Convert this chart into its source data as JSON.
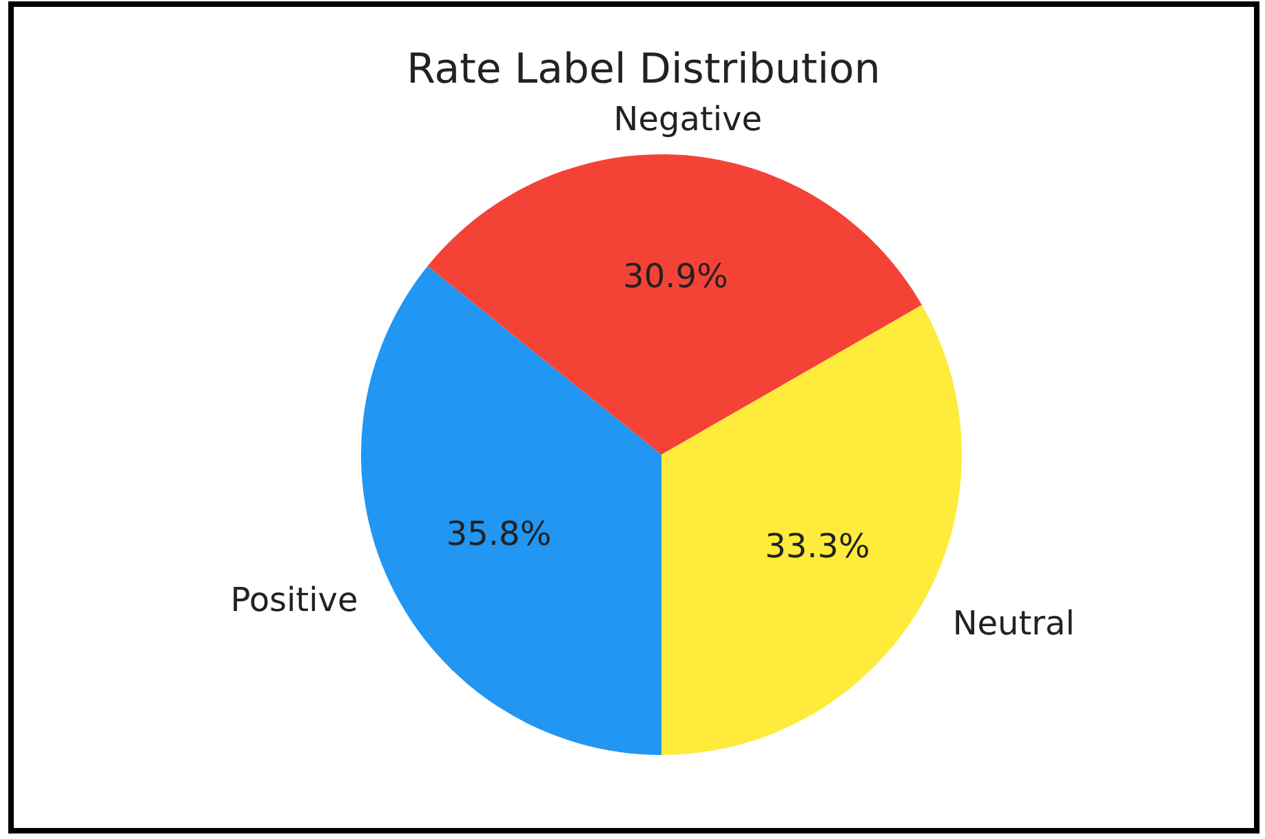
{
  "chart_data": {
    "type": "pie",
    "title": "Rate Label Distribution",
    "categories": [
      "Positive",
      "Negative",
      "Neutral"
    ],
    "values": [
      35.8,
      30.9,
      33.3
    ],
    "colors": [
      "#2196f3",
      "#f44336",
      "#ffeb3b"
    ],
    "value_labels": [
      "35.8%",
      "30.9%",
      "33.3%"
    ],
    "legend": false
  }
}
